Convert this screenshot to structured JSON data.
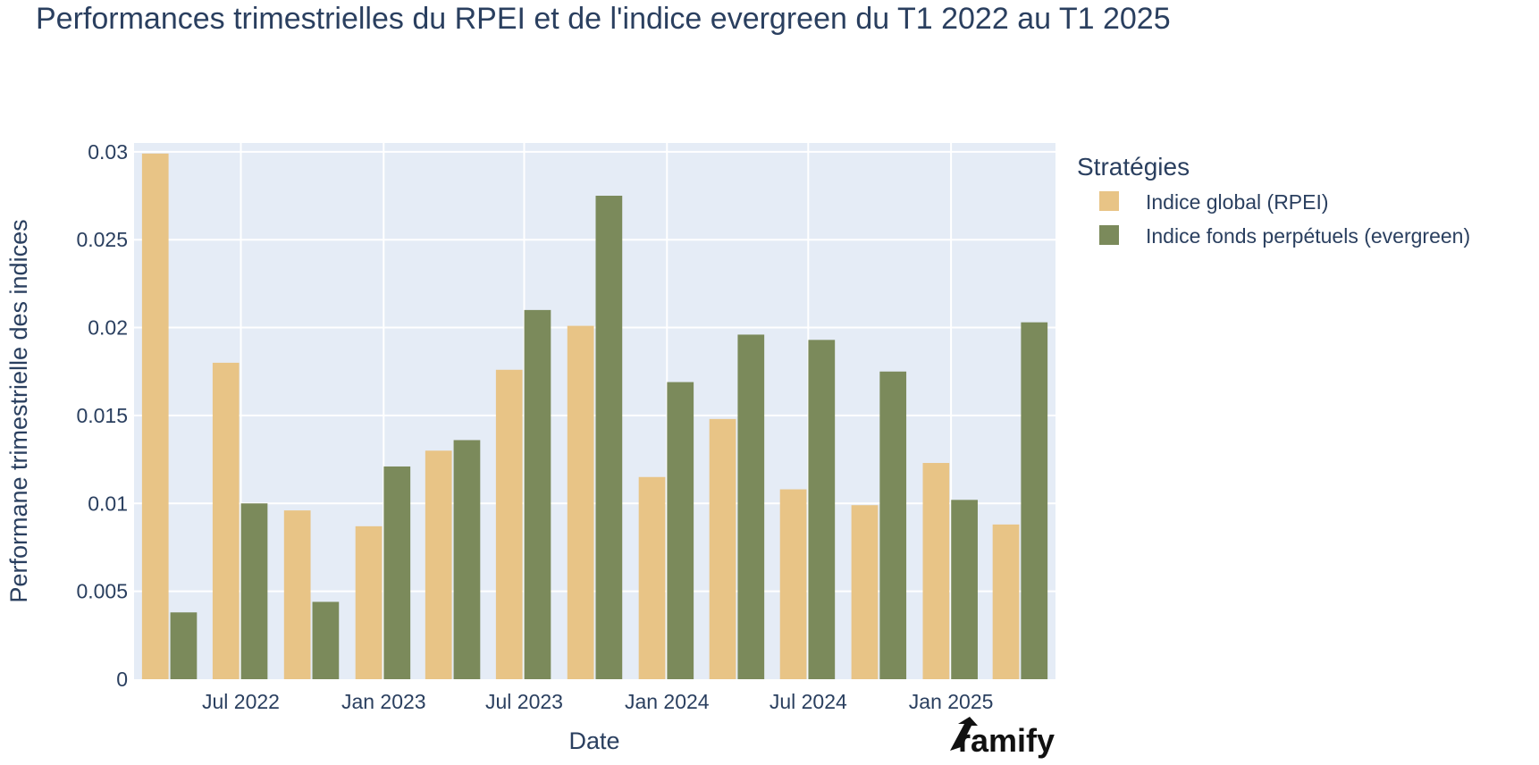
{
  "chart_data": {
    "type": "bar",
    "title": "Performances trimestrielles du RPEI et de l'indice evergreen du T1 2022 au T1 2025",
    "xlabel": "Date",
    "ylabel": "Performane trimestrielle des indices",
    "ylim": [
      0,
      0.0305
    ],
    "yticks": [
      0,
      0.005,
      0.01,
      0.015,
      0.02,
      0.025,
      0.03
    ],
    "ytick_labels": [
      "0",
      "0.005",
      "0.01",
      "0.015",
      "0.02",
      "0.025",
      "0.03"
    ],
    "xticks": [
      "2022-07-01",
      "2023-01-01",
      "2023-07-01",
      "2024-01-01",
      "2024-07-01",
      "2025-01-01"
    ],
    "xtick_labels": [
      "Jul 2022",
      "Jan 2023",
      "Jul 2023",
      "Jan 2024",
      "Jul 2024",
      "Jan 2025"
    ],
    "x": [
      "2022-03-31",
      "2022-06-30",
      "2022-09-30",
      "2022-12-31",
      "2023-03-31",
      "2023-06-30",
      "2023-09-30",
      "2023-12-31",
      "2024-03-31",
      "2024-06-30",
      "2024-09-30",
      "2024-12-31",
      "2025-03-31"
    ],
    "series": [
      {
        "name": "Indice global (RPEI)",
        "color": "#e8c486",
        "values": [
          0.0299,
          0.018,
          0.0096,
          0.0087,
          0.013,
          0.0176,
          0.0201,
          0.0115,
          0.0148,
          0.0108,
          0.0099,
          0.0123,
          0.0088
        ]
      },
      {
        "name": "Indice fonds perpétuels (evergreen)",
        "color": "#7b8a5b",
        "values": [
          0.0038,
          0.01,
          0.0044,
          0.0121,
          0.0136,
          0.021,
          0.0275,
          0.0169,
          0.0196,
          0.0193,
          0.0175,
          0.0102,
          0.0203
        ]
      }
    ],
    "legend_title": "Stratégies",
    "legend_position": "right",
    "grid": true,
    "plot_background": "#e5ecf6"
  },
  "logo": {
    "text": "ramify"
  }
}
